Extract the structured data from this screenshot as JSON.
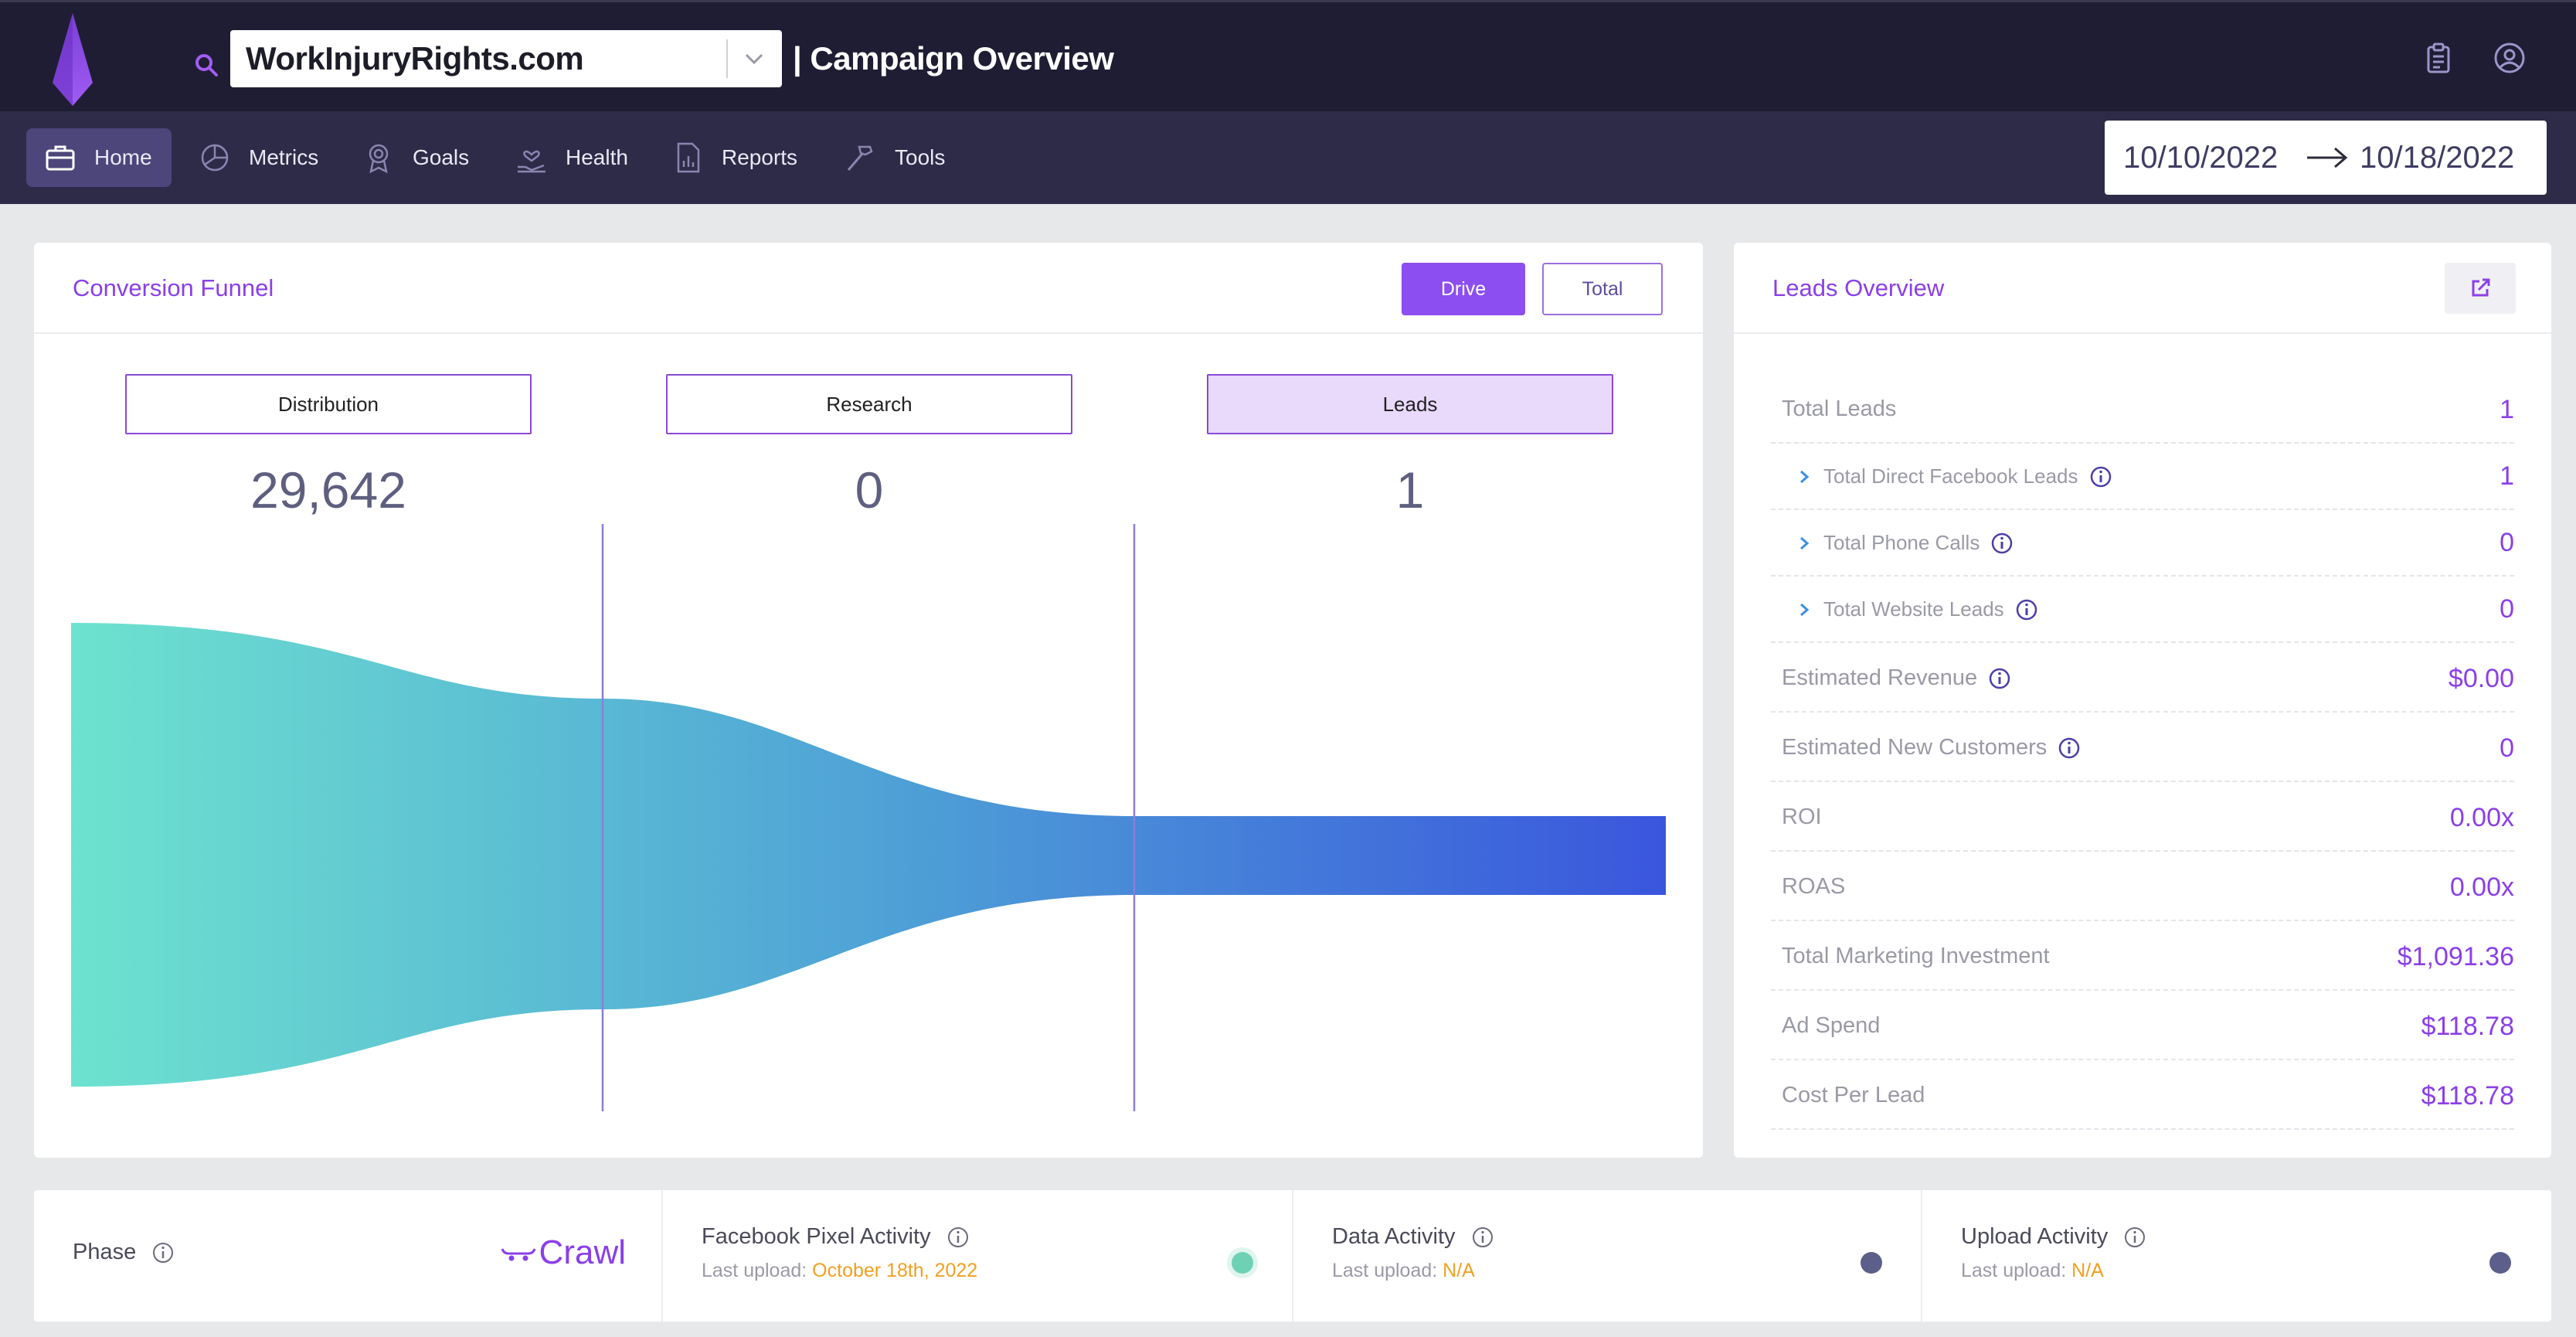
{
  "header": {
    "site_selector_value": "WorkInjuryRights.com",
    "page_title": "| Campaign Overview"
  },
  "nav": {
    "items": [
      {
        "label": "Home",
        "icon": "briefcase-icon",
        "active": true
      },
      {
        "label": "Metrics",
        "icon": "pie-chart-icon"
      },
      {
        "label": "Goals",
        "icon": "award-icon"
      },
      {
        "label": "Health",
        "icon": "hand-heart-icon"
      },
      {
        "label": "Reports",
        "icon": "report-icon"
      },
      {
        "label": "Tools",
        "icon": "hammer-icon"
      }
    ],
    "date_from": "10/10/2022",
    "date_to": "10/18/2022"
  },
  "funnel": {
    "title": "Conversion Funnel",
    "toggle_drive": "Drive",
    "toggle_total": "Total",
    "stages": [
      {
        "label": "Distribution",
        "value": "29,642"
      },
      {
        "label": "Research",
        "value": "0"
      },
      {
        "label": "Leads",
        "value": "1",
        "active": true
      }
    ],
    "colors": {
      "start": "#6de2cf",
      "mid": "#4fa3d6",
      "end": "#3a56dd",
      "divider": "#8a7fd8"
    }
  },
  "leads": {
    "title": "Leads Overview",
    "rows": [
      {
        "label": "Total Leads",
        "value": "1"
      },
      {
        "label": "Total Direct Facebook Leads",
        "value": "1",
        "sub": true,
        "info": true
      },
      {
        "label": "Total Phone Calls",
        "value": "0",
        "sub": true,
        "info": true
      },
      {
        "label": "Total Website Leads",
        "value": "0",
        "sub": true,
        "info": true
      },
      {
        "label": "Estimated Revenue",
        "value": "$0.00",
        "info": true
      },
      {
        "label": "Estimated New Customers",
        "value": "0",
        "info": true
      },
      {
        "label": "ROI",
        "value": "0.00x"
      },
      {
        "label": "ROAS",
        "value": "0.00x"
      },
      {
        "label": "Total Marketing Investment",
        "value": "$1,091.36"
      },
      {
        "label": "Ad Spend",
        "value": "$118.78"
      },
      {
        "label": "Cost Per Lead",
        "value": "$118.78"
      }
    ]
  },
  "status": {
    "phase_label": "Phase",
    "phase_value": "Crawl",
    "cells": [
      {
        "title": "Facebook Pixel Activity",
        "prefix": "Last upload: ",
        "value": "October 18th, 2022",
        "dot_color": "#6fd1b4"
      },
      {
        "title": "Data Activity",
        "prefix": "Last upload: ",
        "value": "N/A",
        "dot_color": "#5b5f8a"
      },
      {
        "title": "Upload Activity",
        "prefix": "Last upload: ",
        "value": "N/A",
        "dot_color": "#5b5f8a"
      }
    ]
  },
  "colors": {
    "accent": "#8b3fe8",
    "topbar": "#1f1d33",
    "navbar": "#2d2b48",
    "warning": "#f0a020"
  }
}
